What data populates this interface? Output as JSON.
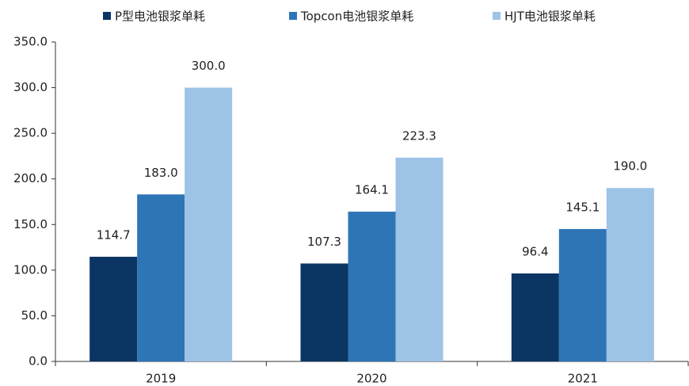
{
  "chart_data": {
    "type": "bar",
    "categories": [
      "2019",
      "2020",
      "2021"
    ],
    "series": [
      {
        "name": "P型电池银浆单耗",
        "color": "#0b3563",
        "values": [
          114.7,
          107.3,
          96.4
        ],
        "value_labels": [
          "114.7",
          "107.3",
          "96.4"
        ]
      },
      {
        "name": "Topcon电池银浆单耗",
        "color": "#2e75b6",
        "values": [
          183.0,
          164.1,
          145.1
        ],
        "value_labels": [
          "183.0",
          "164.1",
          "145.1"
        ]
      },
      {
        "name": "HJT电池银浆单耗",
        "color": "#9dc3e6",
        "values": [
          300.0,
          223.3,
          190.0
        ],
        "value_labels": [
          "300.0",
          "223.3",
          "190.0"
        ]
      }
    ],
    "ylim": [
      0,
      350
    ],
    "yticks": [
      {
        "value": 0,
        "label": "0.0"
      },
      {
        "value": 50,
        "label": "50.0"
      },
      {
        "value": 100,
        "label": "100.0"
      },
      {
        "value": 150,
        "label": "150.0"
      },
      {
        "value": 200,
        "label": "200.0"
      },
      {
        "value": 250,
        "label": "250.0"
      },
      {
        "value": 300,
        "label": "300.0"
      },
      {
        "value": 350,
        "label": "350.0"
      }
    ],
    "legend": "top",
    "grid": false
  }
}
